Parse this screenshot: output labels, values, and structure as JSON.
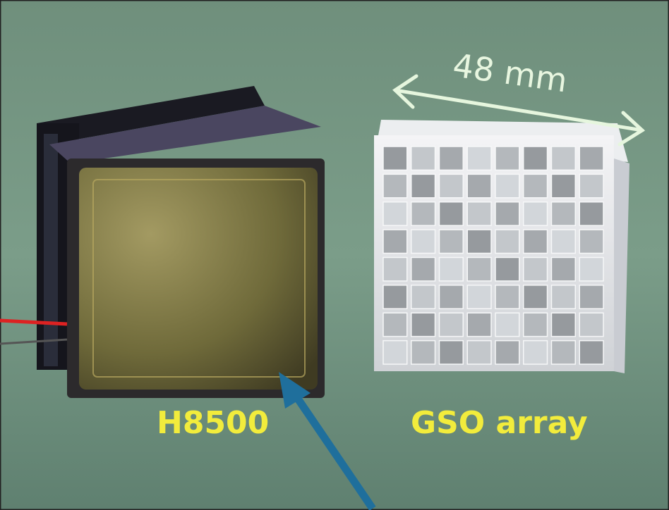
{
  "labels": {
    "dimension": "48 mm",
    "left_object": "H8500",
    "right_object": "GSO array"
  }
}
